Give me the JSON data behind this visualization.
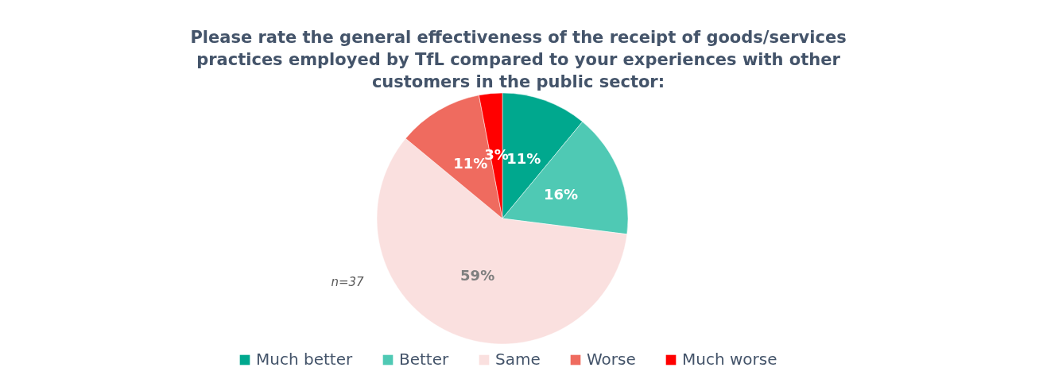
{
  "chart_data": {
    "type": "pie",
    "title": "Please rate the general effectiveness of the receipt of goods/services practices employed by TfL compared to your experiences with other customers in the public sector:",
    "categories": [
      "Much better",
      "Better",
      "Same",
      "Worse",
      "Much worse"
    ],
    "values": [
      11,
      16,
      59,
      11,
      3
    ],
    "colors": [
      "#00a88e",
      "#4fc9b4",
      "#fae0df",
      "#ef6b5f",
      "#ff0000"
    ],
    "value_labels": [
      "11%",
      "16%",
      "59%",
      "11%",
      "3%"
    ],
    "annotations": [
      "n=37"
    ],
    "legend": "bottom"
  }
}
